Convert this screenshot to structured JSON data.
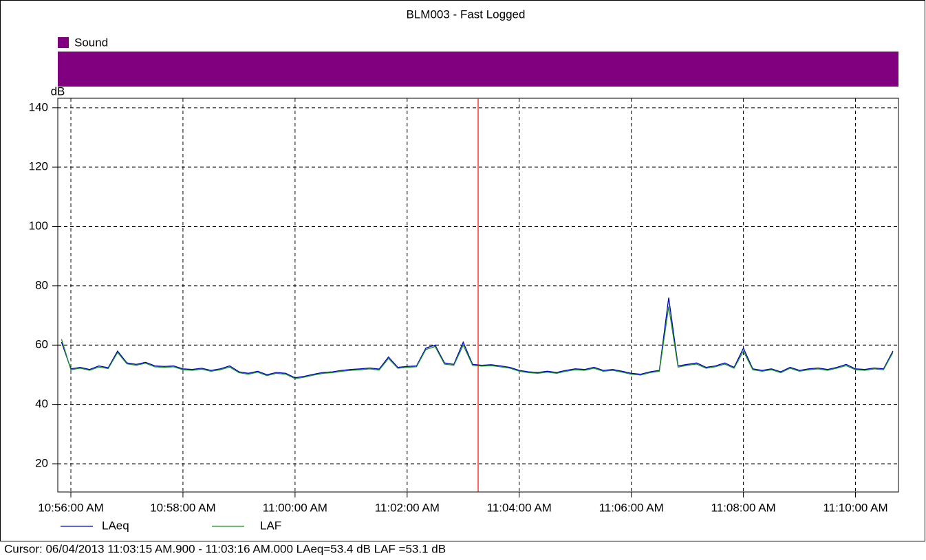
{
  "chart_data": {
    "type": "line",
    "title": "BLM003 - Fast Logged",
    "y_label": "dB",
    "band": {
      "name": "Sound",
      "color": "#800080"
    },
    "x": [
      "10:55:50 AM",
      "10:56:00 AM",
      "10:56:10 AM",
      "10:56:20 AM",
      "10:56:30 AM",
      "10:56:40 AM",
      "10:56:50 AM",
      "10:57:00 AM",
      "10:57:10 AM",
      "10:57:20 AM",
      "10:57:30 AM",
      "10:57:40 AM",
      "10:57:50 AM",
      "10:58:00 AM",
      "10:58:10 AM",
      "10:58:20 AM",
      "10:58:30 AM",
      "10:58:40 AM",
      "10:58:50 AM",
      "10:59:00 AM",
      "10:59:10 AM",
      "10:59:20 AM",
      "10:59:30 AM",
      "10:59:40 AM",
      "10:59:50 AM",
      "11:00:00 AM",
      "11:00:10 AM",
      "11:00:20 AM",
      "11:00:30 AM",
      "11:00:40 AM",
      "11:00:50 AM",
      "11:01:00 AM",
      "11:01:10 AM",
      "11:01:20 AM",
      "11:01:30 AM",
      "11:01:40 AM",
      "11:01:50 AM",
      "11:02:00 AM",
      "11:02:10 AM",
      "11:02:20 AM",
      "11:02:30 AM",
      "11:02:40 AM",
      "11:02:50 AM",
      "11:03:00 AM",
      "11:03:10 AM",
      "11:03:20 AM",
      "11:03:30 AM",
      "11:03:40 AM",
      "11:03:50 AM",
      "11:04:00 AM",
      "11:04:10 AM",
      "11:04:20 AM",
      "11:04:30 AM",
      "11:04:40 AM",
      "11:04:50 AM",
      "11:05:00 AM",
      "11:05:10 AM",
      "11:05:20 AM",
      "11:05:30 AM",
      "11:05:40 AM",
      "11:05:50 AM",
      "11:06:00 AM",
      "11:06:10 AM",
      "11:06:20 AM",
      "11:06:30 AM",
      "11:06:40 AM",
      "11:06:50 AM",
      "11:07:00 AM",
      "11:07:10 AM",
      "11:07:20 AM",
      "11:07:30 AM",
      "11:07:40 AM",
      "11:07:50 AM",
      "11:08:00 AM",
      "11:08:10 AM",
      "11:08:20 AM",
      "11:08:30 AM",
      "11:08:40 AM",
      "11:08:50 AM",
      "11:09:00 AM",
      "11:09:10 AM",
      "11:09:20 AM",
      "11:09:30 AM",
      "11:09:40 AM",
      "11:09:50 AM",
      "11:10:00 AM",
      "11:10:10 AM",
      "11:10:20 AM",
      "11:10:30 AM",
      "11:10:40 AM"
    ],
    "series": [
      {
        "name": "LAeq",
        "color": "#0000cc",
        "values": [
          61,
          52,
          52.5,
          51.8,
          53,
          52.4,
          58,
          54,
          53.5,
          54.2,
          53,
          52.8,
          53,
          52,
          51.8,
          52.2,
          51.5,
          52,
          53,
          51,
          50.5,
          51.2,
          50,
          50.8,
          50.5,
          49,
          49.5,
          50.2,
          50.8,
          51,
          51.5,
          51.8,
          52,
          52.3,
          51.9,
          56,
          52.5,
          52.8,
          53,
          59,
          60,
          54,
          53.5,
          61,
          53.5,
          53.2,
          53.4,
          53,
          52.5,
          51.5,
          51,
          50.8,
          51.2,
          50.8,
          51.5,
          52,
          51.8,
          52.5,
          51.5,
          51.8,
          51.2,
          50.5,
          50.2,
          51,
          51.5,
          76,
          53,
          53.5,
          54,
          52.5,
          53,
          54,
          52.5,
          59,
          52,
          51.5,
          52,
          51,
          52.5,
          51.5,
          52,
          52.3,
          51.8,
          52.5,
          53.5,
          52,
          51.8,
          52.3,
          52,
          58
        ]
      },
      {
        "name": "LAF",
        "color": "#1a8f1a",
        "values": [
          62,
          51.7,
          52.2,
          51.5,
          52.6,
          52.1,
          57.5,
          53.7,
          53.2,
          53.9,
          52.7,
          52.5,
          52.7,
          51.7,
          51.5,
          51.9,
          51.2,
          51.7,
          52.6,
          50.7,
          50.2,
          50.9,
          49.7,
          50.5,
          50.2,
          48.7,
          49.2,
          49.9,
          50.5,
          50.7,
          51.2,
          51.5,
          51.7,
          52,
          51.6,
          55.5,
          52.2,
          52.5,
          52.7,
          58.5,
          59.5,
          53.6,
          53.2,
          60,
          53.2,
          52.9,
          53.1,
          52.7,
          52.2,
          51.2,
          50.7,
          50.5,
          50.9,
          50.5,
          51.2,
          51.7,
          51.5,
          52.2,
          51.2,
          51.5,
          50.9,
          50.2,
          49.9,
          50.7,
          51.2,
          73,
          52.6,
          53.2,
          53.6,
          52.2,
          52.7,
          53.6,
          52.2,
          58,
          51.7,
          51.2,
          51.7,
          50.7,
          52.2,
          51.2,
          51.7,
          52,
          51.5,
          52.2,
          53.1,
          51.7,
          51.5,
          52,
          51.7,
          57.5
        ]
      }
    ],
    "xlim": [
      "10:55:46 AM",
      "11:10:46 AM"
    ],
    "xticks": [
      "10:56:00 AM",
      "10:58:00 AM",
      "11:00:00 AM",
      "11:02:00 AM",
      "11:04:00 AM",
      "11:06:00 AM",
      "11:08:00 AM",
      "11:10:00 AM"
    ],
    "ylim": [
      10.5,
      143.2
    ],
    "yticks": [
      20,
      40,
      60,
      80,
      100,
      120,
      140
    ],
    "grid": true,
    "cursor": {
      "x": "11:03:16 AM",
      "color": "#ff0000"
    },
    "cursor_text": "Cursor: 06/04/2013 11:03:15 AM.900 - 11:03:16 AM.000  LAeq=53.4 dB  LAF =53.1 dB"
  }
}
